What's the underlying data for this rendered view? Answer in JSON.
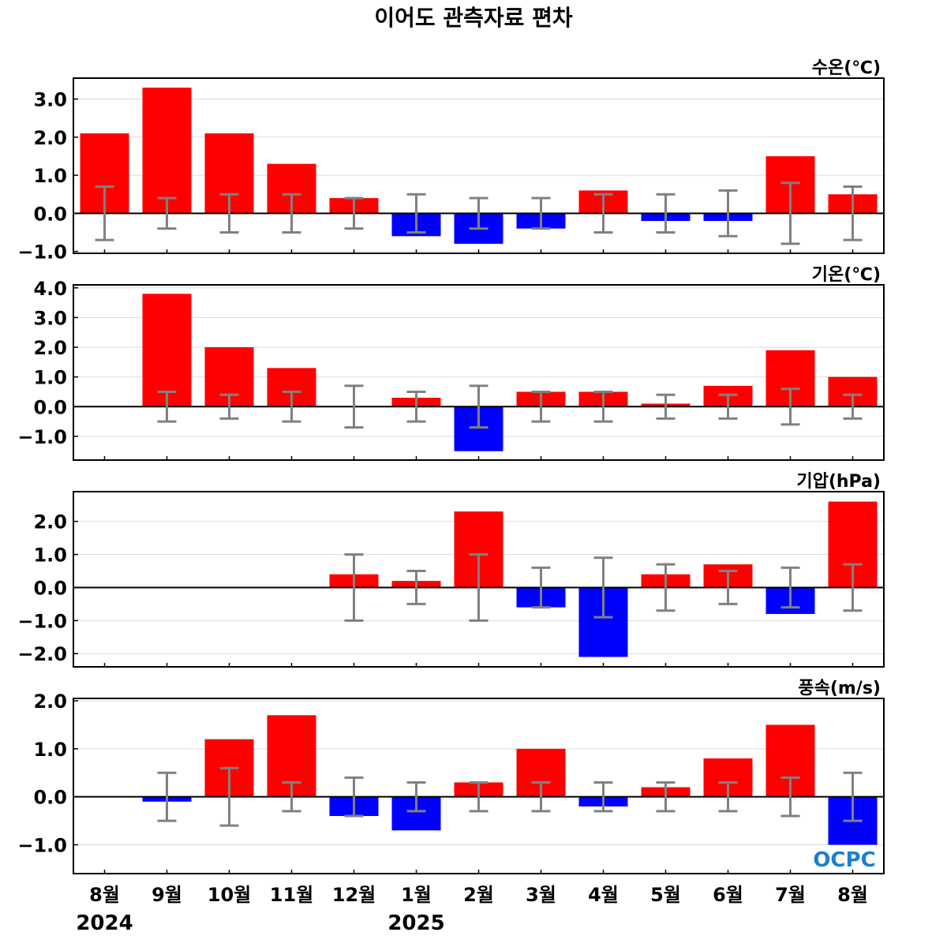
{
  "title": "이어도 관측자료 편차",
  "categories": [
    "8월",
    "9월",
    "10월",
    "11월",
    "12월",
    "1월",
    "2월",
    "3월",
    "4월",
    "5월",
    "6월",
    "7월",
    "8월"
  ],
  "years": [
    {
      "label": "2024",
      "category_index": 0
    },
    {
      "label": "2025",
      "category_index": 5
    }
  ],
  "logo": "OCPC",
  "colors": {
    "positive": "#ff0000",
    "negative": "#0000ff",
    "error_bar": "#808080",
    "zero_line": "#000000",
    "grid": "#d9d9d9"
  },
  "chart_data": [
    {
      "type": "bar",
      "label": "수온(℃)",
      "ylim": [
        -1.05,
        3.55
      ],
      "yticks": [
        -1.0,
        0.0,
        1.0,
        2.0,
        3.0
      ],
      "ytick_labels": [
        "−1.0",
        "0.0",
        "1.0",
        "2.0",
        "3.0"
      ],
      "values": [
        2.1,
        3.3,
        2.1,
        1.3,
        0.4,
        -0.6,
        -0.8,
        -0.4,
        0.6,
        -0.2,
        -0.2,
        1.5,
        0.5
      ],
      "err_low": [
        -0.7,
        -0.4,
        -0.5,
        -0.5,
        -0.4,
        -0.5,
        -0.4,
        -0.4,
        -0.5,
        -0.5,
        -0.6,
        -0.8,
        -0.7
      ],
      "err_high": [
        0.7,
        0.4,
        0.5,
        0.5,
        0.4,
        0.5,
        0.4,
        0.4,
        0.5,
        0.5,
        0.6,
        0.8,
        0.7
      ]
    },
    {
      "type": "bar",
      "label": "기온(℃)",
      "ylim": [
        -1.8,
        4.1
      ],
      "yticks": [
        -1.0,
        0.0,
        1.0,
        2.0,
        3.0,
        4.0
      ],
      "ytick_labels": [
        "−1.0",
        "0.0",
        "1.0",
        "2.0",
        "3.0",
        "4.0"
      ],
      "values": [
        null,
        3.8,
        2.0,
        1.3,
        0.0,
        0.3,
        -1.5,
        0.5,
        0.5,
        0.1,
        0.7,
        1.9,
        1.0
      ],
      "err_low": [
        null,
        -0.5,
        -0.4,
        -0.5,
        -0.7,
        -0.5,
        -0.7,
        -0.5,
        -0.5,
        -0.4,
        -0.4,
        -0.6,
        -0.4
      ],
      "err_high": [
        null,
        0.5,
        0.4,
        0.5,
        0.7,
        0.5,
        0.7,
        0.5,
        0.5,
        0.4,
        0.4,
        0.6,
        0.4
      ]
    },
    {
      "type": "bar",
      "label": "기압(hPa)",
      "ylim": [
        -2.4,
        2.9
      ],
      "yticks": [
        -2.0,
        -1.0,
        0.0,
        1.0,
        2.0
      ],
      "ytick_labels": [
        "−2.0",
        "−1.0",
        "0.0",
        "1.0",
        "2.0"
      ],
      "values": [
        null,
        null,
        null,
        null,
        0.4,
        0.2,
        2.3,
        -0.6,
        -2.1,
        0.4,
        0.7,
        -0.8,
        2.6
      ],
      "err_low": [
        null,
        null,
        null,
        null,
        -1.0,
        -0.5,
        -1.0,
        -0.6,
        -0.9,
        -0.7,
        -0.5,
        -0.6,
        -0.7
      ],
      "err_high": [
        null,
        null,
        null,
        null,
        1.0,
        0.5,
        1.0,
        0.6,
        0.9,
        0.7,
        0.5,
        0.6,
        0.7
      ]
    },
    {
      "type": "bar",
      "label": "풍속(m/s)",
      "ylim": [
        -1.6,
        2.05
      ],
      "yticks": [
        -1.0,
        0.0,
        1.0,
        2.0
      ],
      "ytick_labels": [
        "−1.0",
        "0.0",
        "1.0",
        "2.0"
      ],
      "values": [
        null,
        -0.1,
        1.2,
        1.7,
        -0.4,
        -0.7,
        0.3,
        1.0,
        -0.2,
        0.2,
        0.8,
        1.5,
        -1.0
      ],
      "err_low": [
        null,
        -0.5,
        -0.6,
        -0.3,
        -0.4,
        -0.3,
        -0.3,
        -0.3,
        -0.3,
        -0.3,
        -0.3,
        -0.4,
        -0.5
      ],
      "err_high": [
        null,
        0.5,
        0.6,
        0.3,
        0.4,
        0.3,
        0.3,
        0.3,
        0.3,
        0.3,
        0.3,
        0.4,
        0.5
      ]
    }
  ]
}
